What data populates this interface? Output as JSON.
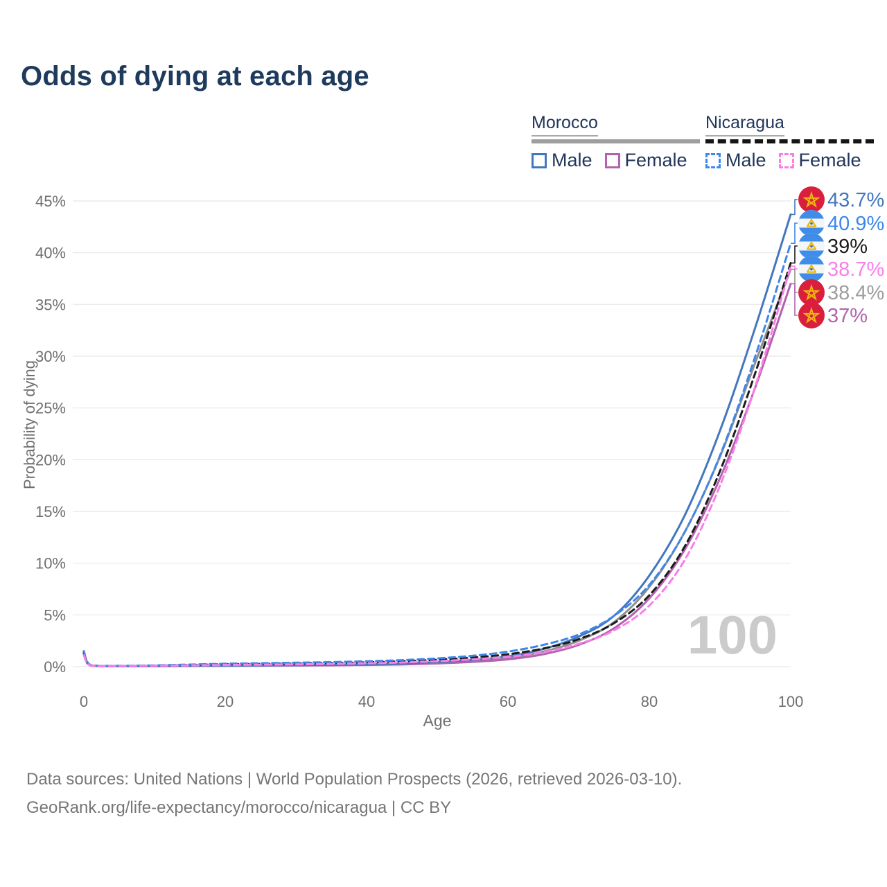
{
  "title": "Odds of dying at each age",
  "legend": {
    "groups": [
      {
        "name": "Morocco",
        "line_style": "solid",
        "bar_color": "#9e9e9e",
        "items": [
          {
            "label": "Male",
            "color": "#4377bd"
          },
          {
            "label": "Female",
            "color": "#b163ae"
          }
        ]
      },
      {
        "name": "Nicaragua",
        "line_style": "dashed",
        "bar_color": "#151515",
        "items": [
          {
            "label": "Male",
            "color": "#3d87ea"
          },
          {
            "label": "Female",
            "color": "#fb7de8"
          }
        ]
      }
    ]
  },
  "chart_data": {
    "type": "line",
    "title": "Odds of dying at each age",
    "xlabel": "Age",
    "ylabel": "Probability of dying",
    "xlim": [
      0,
      100
    ],
    "ylim_pct": [
      0,
      45
    ],
    "x_ticks": [
      0,
      20,
      40,
      60,
      80,
      100
    ],
    "y_ticks": [
      "0%",
      "5%",
      "10%",
      "15%",
      "20%",
      "25%",
      "30%",
      "35%",
      "40%",
      "45%"
    ],
    "grid": true,
    "watermark": "100",
    "x": [
      0,
      1,
      5,
      10,
      15,
      20,
      25,
      30,
      35,
      40,
      45,
      50,
      55,
      60,
      65,
      70,
      75,
      80,
      85,
      90,
      95,
      100
    ],
    "series": [
      {
        "key": "morocco-both",
        "name": "Morocco Both sexes",
        "country": "Morocco",
        "flag": "morocco",
        "style": "solid",
        "color": "#8f8f8f",
        "label_color": "#9e9e9e",
        "end_label": "38.4%",
        "values": [
          1.3,
          0.1,
          0.04,
          0.05,
          0.07,
          0.09,
          0.11,
          0.13,
          0.15,
          0.19,
          0.26,
          0.38,
          0.56,
          0.85,
          1.45,
          2.5,
          4.3,
          7.7,
          13.0,
          20.3,
          29.4,
          38.4
        ]
      },
      {
        "key": "morocco-female",
        "name": "Morocco Female",
        "country": "Morocco",
        "flag": "morocco",
        "style": "solid",
        "color": "#b163ae",
        "label_color": "#b163ae",
        "end_label": "37%",
        "values": [
          1.2,
          0.09,
          0.04,
          0.05,
          0.06,
          0.08,
          0.09,
          0.11,
          0.13,
          0.16,
          0.21,
          0.31,
          0.46,
          0.7,
          1.2,
          2.1,
          3.7,
          6.6,
          11.3,
          18.2,
          27.0,
          37.0
        ]
      },
      {
        "key": "morocco-male",
        "name": "Morocco Male",
        "country": "Morocco",
        "flag": "morocco",
        "style": "solid",
        "color": "#4377bd",
        "label_color": "#4377bd",
        "end_label": "43.7%",
        "values": [
          1.4,
          0.12,
          0.05,
          0.06,
          0.08,
          0.1,
          0.12,
          0.14,
          0.17,
          0.22,
          0.3,
          0.45,
          0.65,
          1.0,
          1.7,
          2.9,
          4.9,
          8.8,
          14.6,
          22.8,
          32.8,
          43.7
        ]
      },
      {
        "key": "nicaragua-both",
        "name": "Nicaragua Both sexes",
        "country": "Nicaragua",
        "flag": "nicaragua",
        "style": "dashed",
        "color": "#1c1c1c",
        "label_color": "#1c1c1c",
        "end_label": "39%",
        "values": [
          1.3,
          0.13,
          0.07,
          0.1,
          0.16,
          0.22,
          0.26,
          0.3,
          0.35,
          0.42,
          0.52,
          0.67,
          0.88,
          1.2,
          1.75,
          2.65,
          4.2,
          6.9,
          11.6,
          18.9,
          28.4,
          39.0
        ]
      },
      {
        "key": "nicaragua-male",
        "name": "Nicaragua Male",
        "country": "Nicaragua",
        "flag": "nicaragua",
        "style": "dashed",
        "color": "#3d87ea",
        "label_color": "#3d87ea",
        "end_label": "40.9%",
        "values": [
          1.5,
          0.15,
          0.08,
          0.12,
          0.2,
          0.28,
          0.33,
          0.38,
          0.44,
          0.52,
          0.63,
          0.8,
          1.05,
          1.45,
          2.1,
          3.1,
          4.9,
          7.9,
          13.0,
          20.4,
          30.0,
          40.9
        ]
      },
      {
        "key": "nicaragua-female",
        "name": "Nicaragua Female",
        "country": "Nicaragua",
        "flag": "nicaragua",
        "style": "dashed",
        "color": "#fb7de8",
        "label_color": "#fb7de8",
        "end_label": "38.7%",
        "values": [
          1.1,
          0.11,
          0.06,
          0.08,
          0.12,
          0.16,
          0.19,
          0.22,
          0.26,
          0.32,
          0.4,
          0.53,
          0.7,
          0.95,
          1.4,
          2.2,
          3.5,
          5.9,
          10.3,
          17.5,
          27.1,
          38.7
        ]
      }
    ],
    "flag_colors": {
      "morocco_red": "#da1f3d",
      "morocco_star_gold": "#edb80e",
      "nicaragua_blue": "#3f8de8",
      "nicaragua_white": "#f4f5f7",
      "nicaragua_emblem_gold": "#edb80e"
    },
    "colors": {
      "grid": "#ebebeb",
      "axis_text": "#6f6f6f",
      "watermark": "#cbcbcb"
    }
  },
  "footer": {
    "line1": "Data sources: United Nations | World Population Prospects (2026, retrieved 2026-03-10).",
    "line2": "GeoRank.org/life-expectancy/morocco/nicaragua | CC BY"
  }
}
